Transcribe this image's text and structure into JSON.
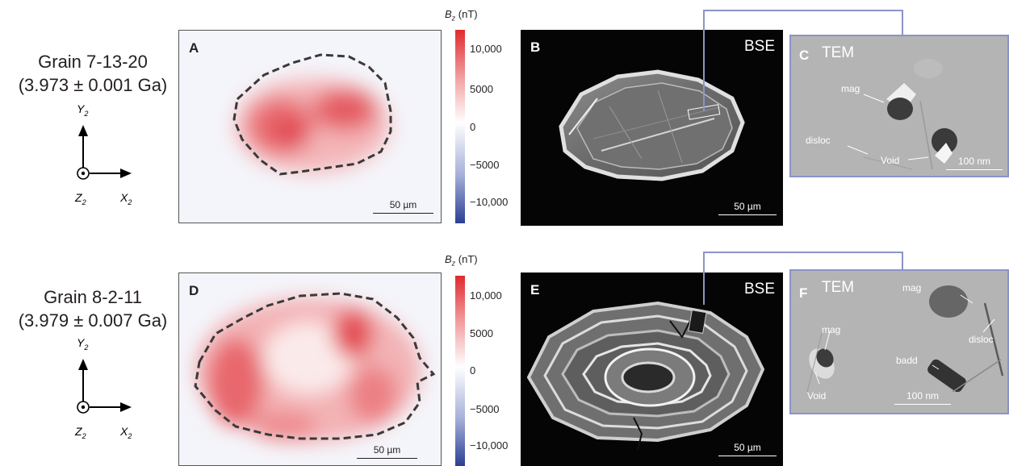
{
  "grains": [
    {
      "id": "top",
      "name": "Grain 7-13-20",
      "age": "(3.973 ± 0.001 Ga)",
      "axes": {
        "y": "Y",
        "z": "Z",
        "x": "X",
        "sub": "2"
      },
      "map": {
        "letter": "A",
        "scale": "50 µm"
      },
      "colorbar": {
        "title_symbol": "B",
        "title_sub": "z",
        "title_unit": " (nT)",
        "ticks": [
          "10,000",
          "5000",
          "0",
          "−5000",
          "−10,000"
        ]
      },
      "bse": {
        "letter": "B",
        "tag": "BSE",
        "scale": "50 µm"
      },
      "tem": {
        "letter": "C",
        "tag": "TEM",
        "scale": "100 nm",
        "labels": [
          "mag",
          "disloc",
          "Void"
        ]
      }
    },
    {
      "id": "bottom",
      "name": "Grain 8-2-11",
      "age": "(3.979 ± 0.007 Ga)",
      "axes": {
        "y": "Y",
        "z": "Z",
        "x": "X",
        "sub": "2"
      },
      "map": {
        "letter": "D",
        "scale": "50 µm"
      },
      "colorbar": {
        "title_symbol": "B",
        "title_sub": "z",
        "title_unit": " (nT)",
        "ticks": [
          "10,000",
          "5000",
          "0",
          "−5000",
          "−10,000"
        ]
      },
      "bse": {
        "letter": "E",
        "tag": "BSE",
        "scale": "50 µm"
      },
      "tem": {
        "letter": "F",
        "tag": "TEM",
        "scale": "100 nm",
        "labels": [
          "mag",
          "mag",
          "disloc",
          "badd",
          "Void"
        ]
      }
    }
  ],
  "colors": {
    "positive": "#e02a2e",
    "negative": "#2b3f94",
    "outline": "#3a3a3a",
    "connector": "#8b93c8"
  }
}
